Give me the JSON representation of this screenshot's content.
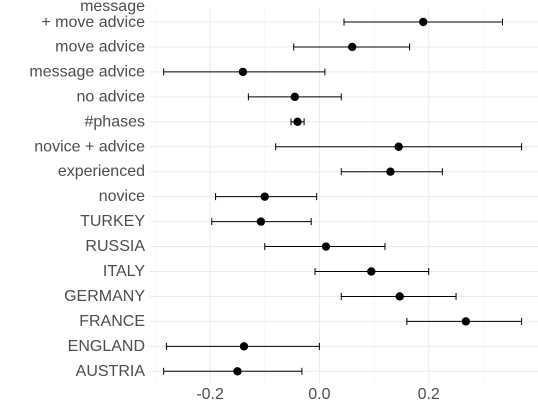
{
  "chart_data": {
    "type": "scatter",
    "subtype": "coefficient-plot",
    "title": "",
    "xlabel": "",
    "ylabel": "",
    "xlim": [
      -0.31,
      0.4
    ],
    "x_ticks": [
      -0.2,
      0.0,
      0.2
    ],
    "x_tick_labels": [
      "-0.2",
      "0.0",
      "0.2"
    ],
    "grid": true,
    "legend": "none",
    "point_color": "#000000",
    "rows": [
      {
        "label": "message\n+ move advice",
        "estimate": 0.19,
        "low": 0.045,
        "high": 0.335
      },
      {
        "label": "move advice",
        "estimate": 0.06,
        "low": -0.047,
        "high": 0.165
      },
      {
        "label": "message advice",
        "estimate": -0.14,
        "low": -0.285,
        "high": 0.01
      },
      {
        "label": "no advice",
        "estimate": -0.045,
        "low": -0.13,
        "high": 0.04
      },
      {
        "label": "#phases",
        "estimate": -0.04,
        "low": -0.052,
        "high": -0.028
      },
      {
        "label": "novice + advice",
        "estimate": 0.145,
        "low": -0.08,
        "high": 0.37
      },
      {
        "label": "experienced",
        "estimate": 0.13,
        "low": 0.04,
        "high": 0.225
      },
      {
        "label": "novice",
        "estimate": -0.1,
        "low": -0.19,
        "high": -0.005
      },
      {
        "label": "TURKEY",
        "estimate": -0.107,
        "low": -0.197,
        "high": -0.015
      },
      {
        "label": "RUSSIA",
        "estimate": 0.012,
        "low": -0.1,
        "high": 0.12
      },
      {
        "label": "ITALY",
        "estimate": 0.095,
        "low": -0.008,
        "high": 0.2
      },
      {
        "label": "GERMANY",
        "estimate": 0.147,
        "low": 0.04,
        "high": 0.25
      },
      {
        "label": "FRANCE",
        "estimate": 0.268,
        "low": 0.16,
        "high": 0.37
      },
      {
        "label": "ENGLAND",
        "estimate": -0.138,
        "low": -0.28,
        "high": 0.0
      },
      {
        "label": "AUSTRIA",
        "estimate": -0.15,
        "low": -0.285,
        "high": -0.032
      }
    ]
  }
}
